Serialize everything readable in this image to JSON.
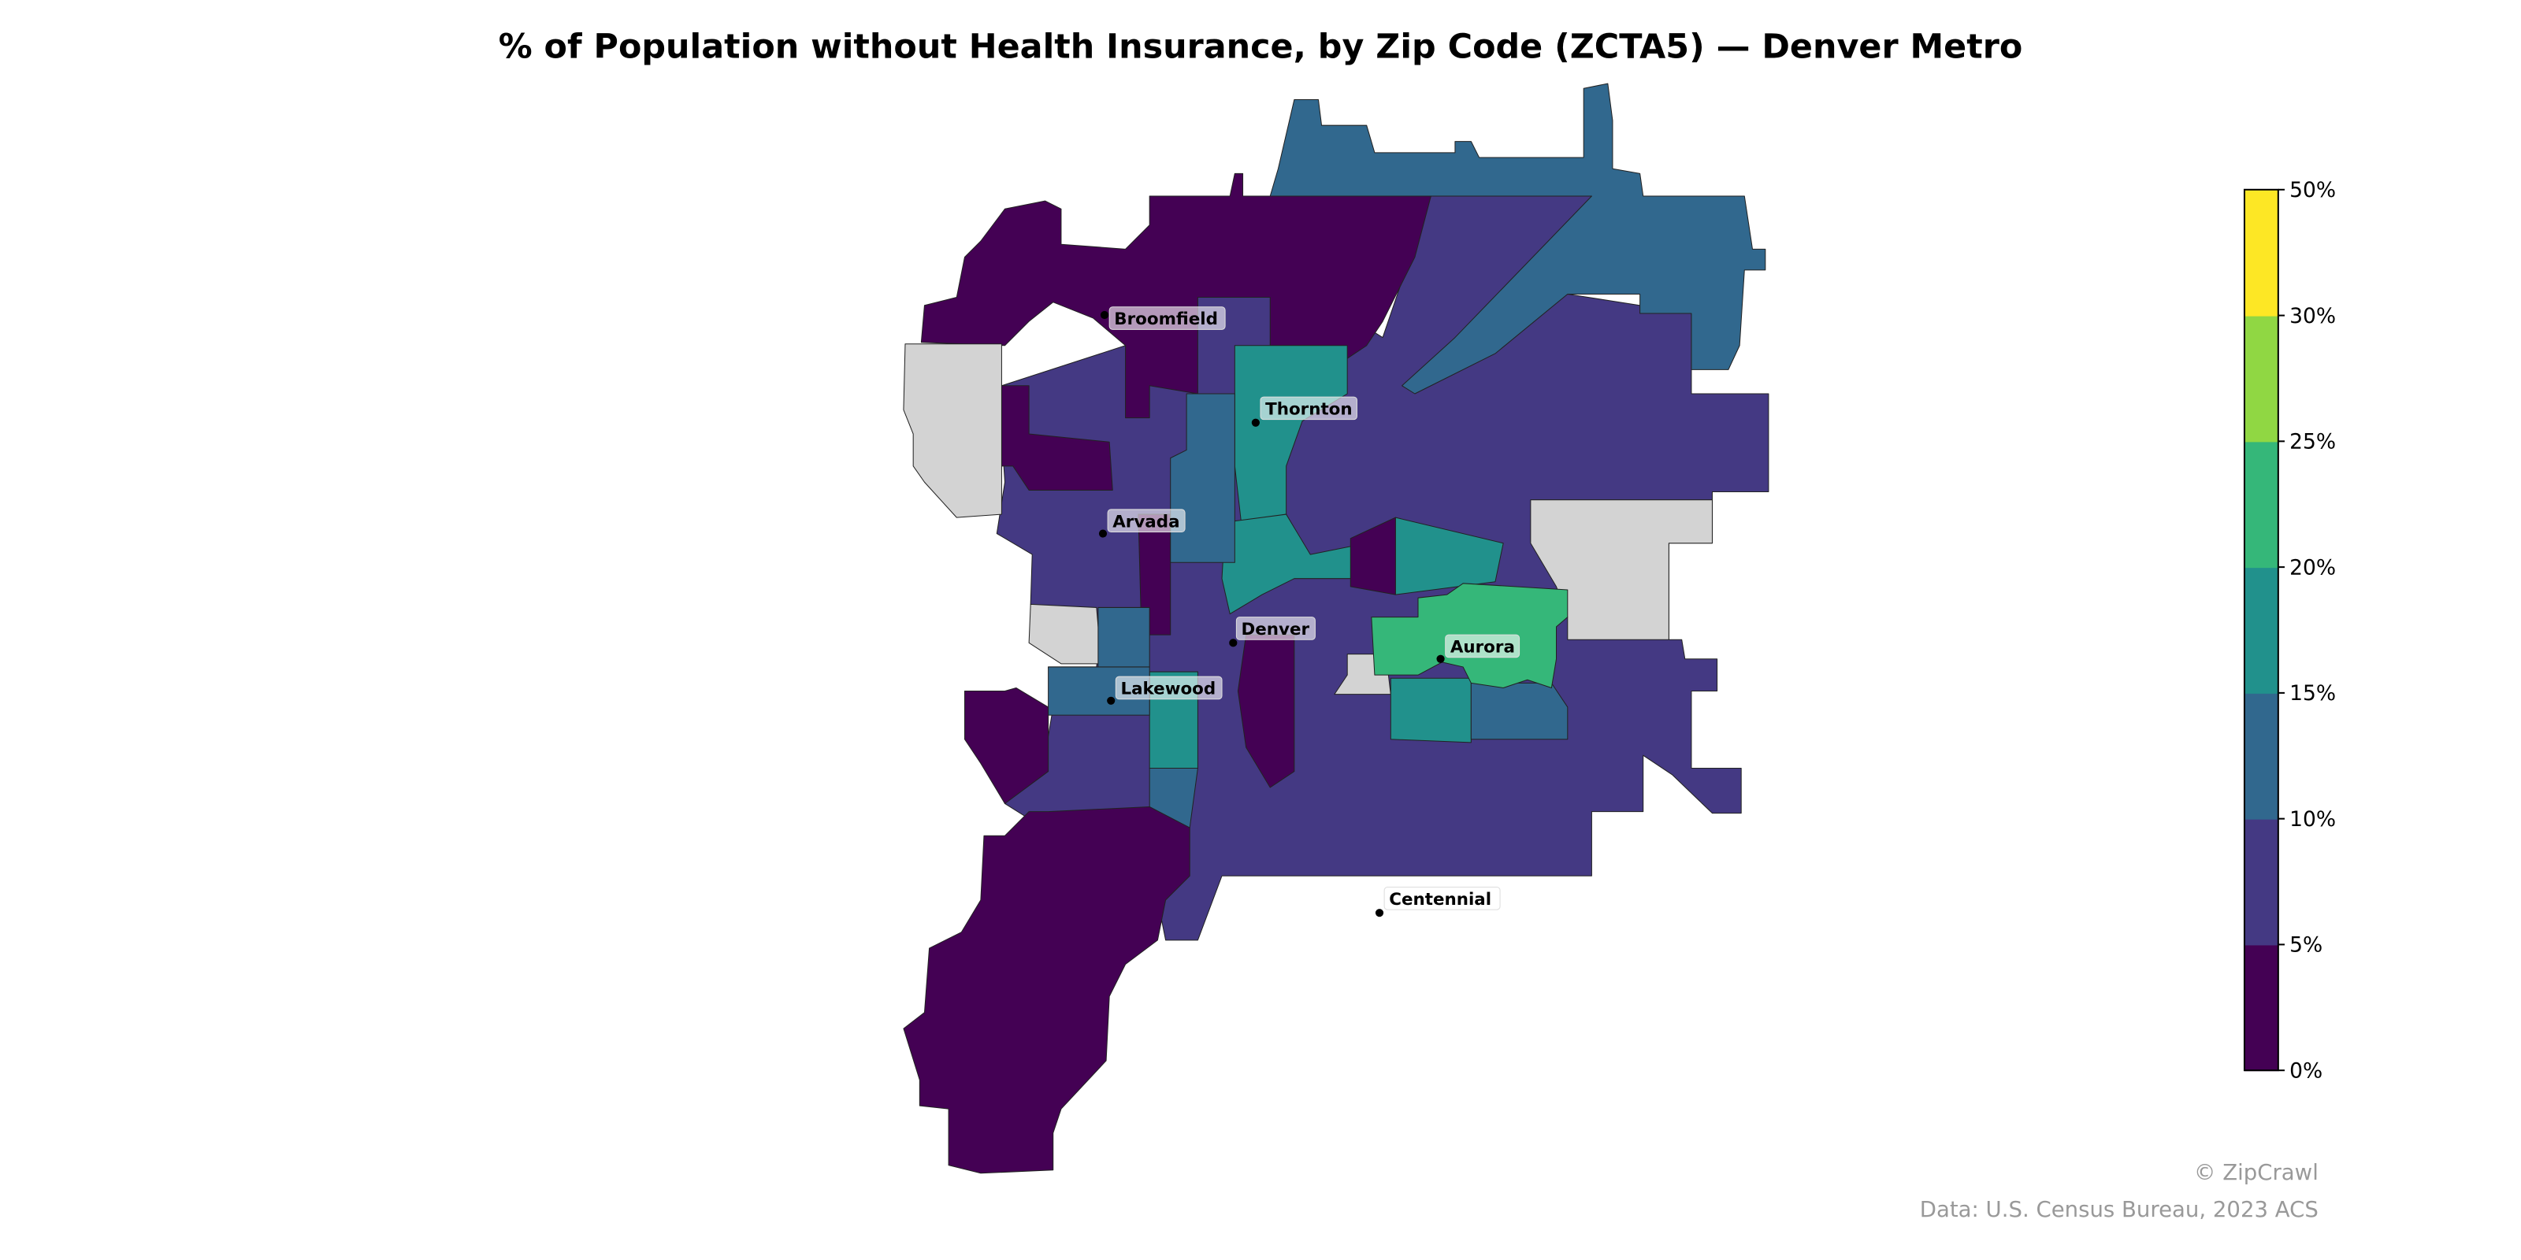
{
  "title": "% of Population without Health Insurance, by Zip Code (ZCTA5) — Denver Metro",
  "colors": {
    "no_data": "#d3d3d3",
    "bins": [
      "#440154",
      "#443983",
      "#31688e",
      "#21918c",
      "#35b779",
      "#90d743",
      "#fde725"
    ]
  },
  "colorbar": {
    "ticks": [
      "0%",
      "5%",
      "10%",
      "15%",
      "20%",
      "25%",
      "30%",
      "50%"
    ],
    "bounds": [
      0,
      5,
      10,
      15,
      20,
      25,
      30,
      50
    ]
  },
  "cities": [
    {
      "name": "Broomfield"
    },
    {
      "name": "Thornton"
    },
    {
      "name": "Arvada"
    },
    {
      "name": "Denver"
    },
    {
      "name": "Lakewood"
    },
    {
      "name": "Aurora"
    },
    {
      "name": "Centennial"
    }
  ],
  "footer": {
    "credit": "© ZipCrawl",
    "source": "Data: U.S. Census Bureau, 2023 ACS"
  }
}
